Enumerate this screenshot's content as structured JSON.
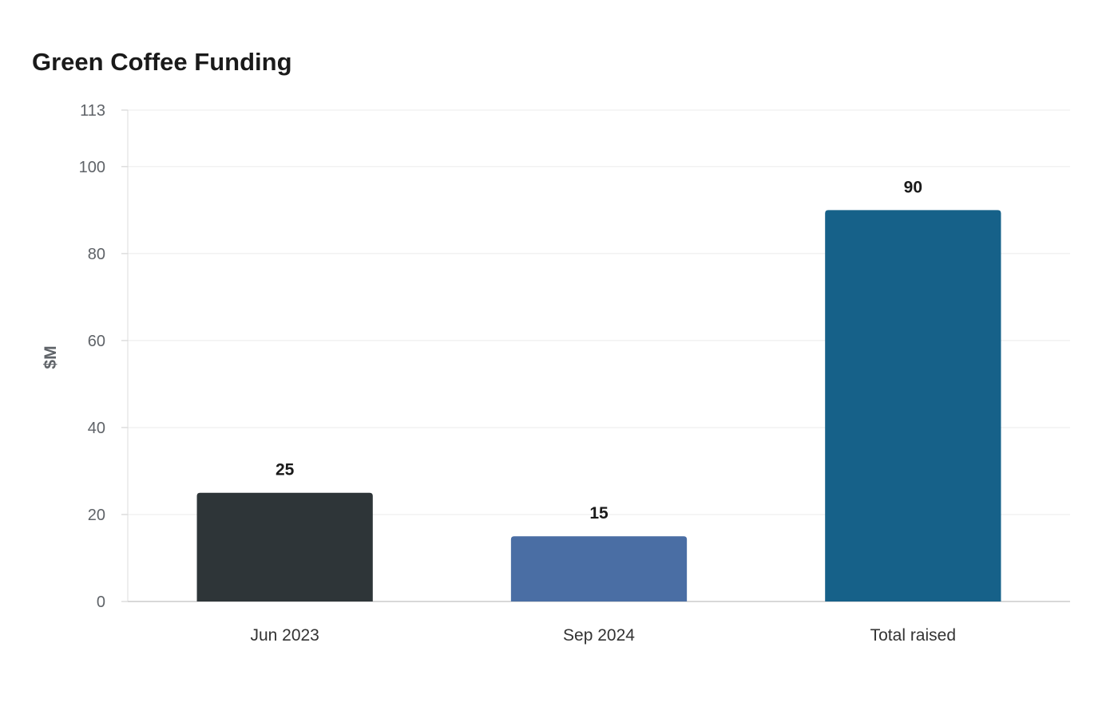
{
  "chart_data": {
    "type": "bar",
    "title": "Green Coffee Funding",
    "xlabel": "",
    "ylabel": "$M",
    "categories": [
      "Jun 2023",
      "Sep 2024",
      "Total raised"
    ],
    "values": [
      25,
      15,
      90
    ],
    "colors": [
      "#2e3538",
      "#4a6ea4",
      "#166189"
    ],
    "ylim": [
      0,
      113
    ],
    "yticks": [
      0,
      20,
      40,
      60,
      80,
      100,
      113
    ],
    "grid": true,
    "legend": "none",
    "data_labels": true
  }
}
